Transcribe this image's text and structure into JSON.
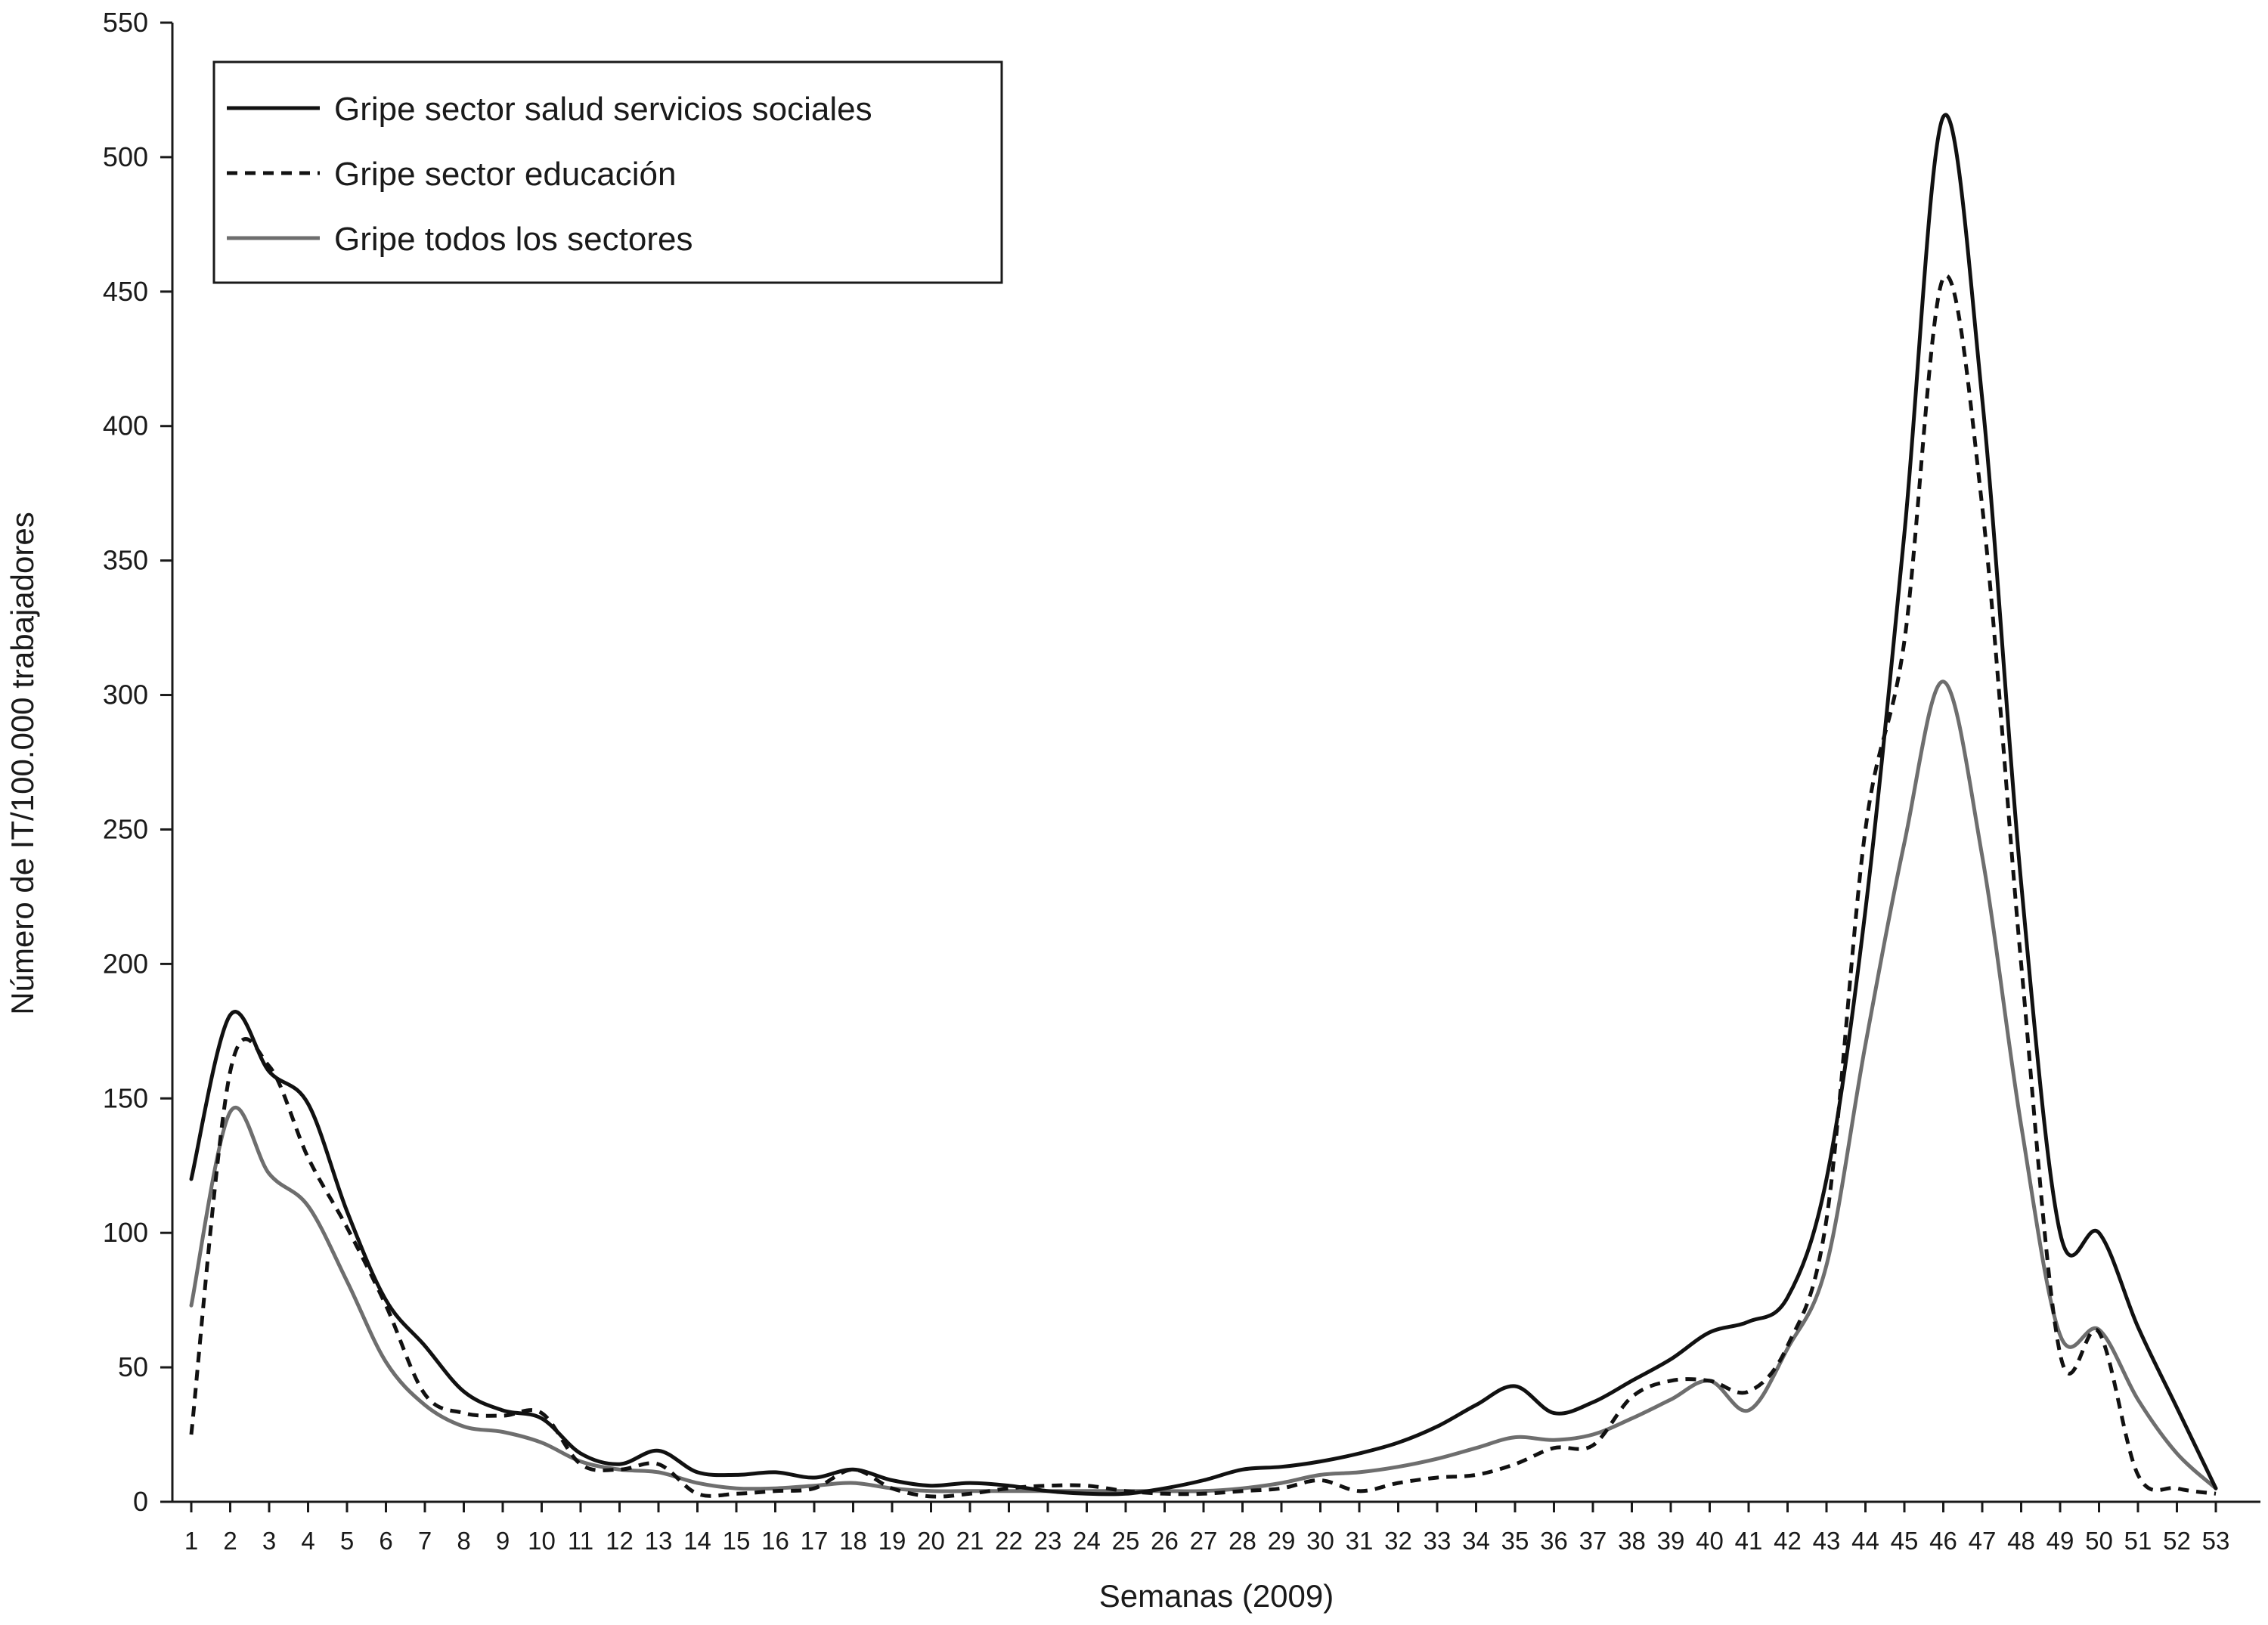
{
  "chart_data": {
    "type": "line",
    "xlabel": "Semanas (2009)",
    "ylabel": "Número de IT/100.000 trabajadores",
    "ylim": [
      0,
      550
    ],
    "yticks": [
      0,
      50,
      100,
      150,
      200,
      250,
      300,
      350,
      400,
      450,
      500,
      550
    ],
    "categories": [
      "1",
      "2",
      "3",
      "4",
      "5",
      "6",
      "7",
      "8",
      "9",
      "10",
      "11",
      "12",
      "13",
      "14",
      "15",
      "16",
      "17",
      "18",
      "19",
      "20",
      "21",
      "22",
      "23",
      "24",
      "25",
      "26",
      "27",
      "28",
      "29",
      "30",
      "31",
      "32",
      "33",
      "34",
      "35",
      "36",
      "37",
      "38",
      "39",
      "40",
      "41",
      "42",
      "43",
      "44",
      "45",
      "46",
      "47",
      "48",
      "49",
      "50",
      "51",
      "52",
      "53"
    ],
    "legend_position": "top-left",
    "grid": false,
    "series": [
      {
        "name": "Gripe sector salud servicios sociales",
        "color": "#111111",
        "style": "solid",
        "values": [
          120,
          181,
          160,
          148,
          108,
          75,
          58,
          41,
          34,
          31,
          18,
          14,
          19,
          11,
          10,
          11,
          9,
          12,
          8,
          6,
          7,
          6,
          4,
          3,
          3,
          5,
          8,
          12,
          13,
          15,
          18,
          22,
          28,
          36,
          43,
          33,
          37,
          45,
          53,
          63,
          67,
          76,
          120,
          220,
          360,
          515,
          410,
          230,
          100,
          100,
          65,
          35,
          5
        ]
      },
      {
        "name": "Gripe sector educación",
        "color": "#111111",
        "style": "dashed",
        "values": [
          25,
          160,
          162,
          128,
          102,
          73,
          40,
          33,
          32,
          33,
          14,
          12,
          14,
          3,
          3,
          4,
          5,
          12,
          5,
          2,
          3,
          5,
          6,
          6,
          4,
          3,
          3,
          4,
          5,
          8,
          4,
          7,
          9,
          10,
          14,
          20,
          21,
          39,
          45,
          45,
          41,
          58,
          105,
          250,
          320,
          455,
          370,
          200,
          55,
          63,
          10,
          5,
          3
        ]
      },
      {
        "name": "Gripe todos los sectores",
        "color": "#6e6e6e",
        "style": "solid",
        "values": [
          73,
          145,
          122,
          110,
          82,
          52,
          36,
          28,
          26,
          22,
          15,
          12,
          11,
          7,
          5,
          5,
          6,
          7,
          5,
          4,
          4,
          4,
          4,
          4,
          4,
          4,
          4,
          5,
          7,
          10,
          11,
          13,
          16,
          20,
          24,
          23,
          25,
          31,
          38,
          45,
          34,
          57,
          88,
          170,
          245,
          305,
          240,
          140,
          62,
          64,
          38,
          18,
          5
        ]
      }
    ]
  }
}
